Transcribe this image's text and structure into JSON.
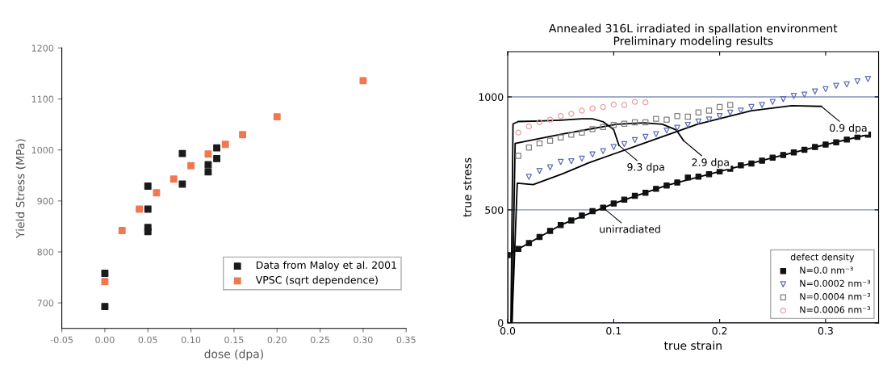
{
  "chart_data": [
    {
      "type": "scatter",
      "xlabel": "dose (dpa)",
      "ylabel": "Yield Stress (MPa)",
      "marker": "square",
      "xlim": [
        -0.05,
        0.35
      ],
      "xticks": [
        -0.05,
        {
          "value": 0,
          "label": "0.00"
        },
        0.05,
        {
          "value": 0.1,
          "label": "0.10"
        },
        0.15,
        {
          "value": 0.2,
          "label": "0.20"
        },
        0.25,
        {
          "value": 0.3,
          "label": "0.30"
        },
        0.35
      ],
      "ylim": [
        650,
        1200
      ],
      "yticks": [
        700,
        800,
        900,
        1000,
        1100,
        1200
      ],
      "grid": false,
      "legend": "bottom right",
      "series": [
        {
          "name": "Data from Maloy et al. 2001",
          "color": "#1a1a1a",
          "x": [
            0,
            0,
            0.05,
            0.05,
            0.05,
            0.05,
            0.09,
            0.09,
            0.12,
            0.12,
            0.13,
            0.13
          ],
          "values": [
            758,
            693,
            929,
            884,
            848,
            840,
            993,
            933,
            971,
            957,
            1004,
            983
          ]
        },
        {
          "name": "VPSC (sqrt dependence)",
          "color": "#f07850",
          "x": [
            0,
            0.02,
            0.04,
            0.06,
            0.08,
            0.1,
            0.12,
            0.14,
            0.16,
            0.2,
            0.3
          ],
          "values": [
            742,
            842,
            884,
            916,
            943,
            969,
            992,
            1011,
            1030,
            1065,
            1136
          ]
        }
      ]
    },
    {
      "type": "scatter",
      "title": "Annealed 316L irradiated in spallation environment\nPreliminary modeling results",
      "xlabel": "true strain",
      "ylabel": "true stress",
      "xlim": [
        0,
        0.35
      ],
      "xticks": [
        {
          "value": 0,
          "label": "0.0"
        },
        0.1,
        0.2,
        0.3
      ],
      "ylim": [
        0,
        1200
      ],
      "yticks": [
        0,
        500,
        1000
      ],
      "grid": "y",
      "legend": "bottom right",
      "legend_title": "defect density",
      "series": [
        {
          "type": "line",
          "color": "#000000",
          "x": [
            0,
            0,
            0.02,
            0.05,
            0.1,
            0.15,
            0.2,
            0.25,
            0.3,
            0.34
          ],
          "values": [
            0,
            300,
            353,
            433,
            528,
            608,
            670,
            731,
            789,
            833
          ]
        },
        {
          "type": "line",
          "color": "#000000",
          "x": [
            0.003,
            0.005,
            0.01,
            0.03,
            0.05,
            0.07,
            0.08,
            0.09,
            0.1,
            0.105
          ],
          "values": [
            0,
            880,
            891,
            893,
            897,
            903,
            903,
            890,
            855,
            785
          ]
        },
        {
          "type": "line",
          "color": "#000000",
          "x": [
            0.004,
            0.007,
            0.026,
            0.052,
            0.077,
            0.103,
            0.128,
            0.146,
            0.159,
            0.166
          ],
          "values": [
            0,
            794,
            812,
            836,
            857,
            879,
            885,
            879,
            854,
            806
          ]
        },
        {
          "type": "line",
          "color": "#000000",
          "x": [
            0.004,
            0.009,
            0.024,
            0.052,
            0.077,
            0.128,
            0.179,
            0.23,
            0.268,
            0.296
          ],
          "values": [
            0,
            618,
            612,
            660,
            709,
            794,
            879,
            939,
            961,
            958
          ]
        },
        {
          "name": "N=0.0 nm⁻³",
          "marker": "square",
          "color": "#111111",
          "x": [
            0,
            0.01,
            0.02,
            0.03,
            0.04,
            0.05,
            0.06,
            0.07,
            0.08,
            0.09,
            0.1,
            0.11,
            0.12,
            0.13,
            0.14,
            0.15,
            0.16,
            0.17,
            0.18,
            0.19,
            0.2,
            0.21,
            0.22,
            0.23,
            0.24,
            0.25,
            0.26,
            0.27,
            0.28,
            0.29,
            0.3,
            0.31,
            0.32,
            0.33,
            0.34
          ],
          "values": [
            300,
            327,
            353,
            380,
            407,
            433,
            453,
            475,
            494,
            510,
            528,
            545,
            562,
            576,
            593,
            608,
            621,
            643,
            647,
            658,
            670,
            682,
            697,
            705,
            718,
            731,
            743,
            754,
            766,
            778,
            789,
            799,
            811,
            823,
            833
          ]
        },
        {
          "name": "N=0.0002 nm⁻³",
          "marker": "triangle",
          "color": "#6070b0",
          "x": [
            0.02,
            0.03,
            0.04,
            0.05,
            0.06,
            0.07,
            0.08,
            0.09,
            0.1,
            0.11,
            0.12,
            0.13,
            0.14,
            0.15,
            0.16,
            0.17,
            0.18,
            0.19,
            0.2,
            0.21,
            0.22,
            0.23,
            0.24,
            0.25,
            0.26,
            0.27,
            0.28,
            0.29,
            0.3,
            0.31,
            0.32,
            0.33,
            0.34
          ],
          "values": [
            646,
            672,
            688,
            712,
            715,
            727,
            745,
            760,
            778,
            791,
            809,
            823,
            835,
            851,
            863,
            876,
            891,
            900,
            915,
            930,
            939,
            955,
            964,
            978,
            990,
            1004,
            1010,
            1024,
            1034,
            1049,
            1055,
            1069,
            1079
          ]
        },
        {
          "name": "N=0.0004 nm⁻³",
          "marker": "square",
          "color": "#808080",
          "x": [
            0.01,
            0.02,
            0.03,
            0.04,
            0.05,
            0.06,
            0.07,
            0.08,
            0.09,
            0.1,
            0.11,
            0.12,
            0.13,
            0.14,
            0.15,
            0.16,
            0.17,
            0.18,
            0.19,
            0.2,
            0.21
          ],
          "values": [
            739,
            776,
            794,
            806,
            820,
            833,
            842,
            857,
            867,
            876,
            881,
            887,
            887,
            903,
            899,
            915,
            912,
            931,
            939,
            955,
            964
          ]
        },
        {
          "name": "N=0.0006 nm⁻³",
          "marker": "circle",
          "color": "#e8a0a0",
          "x": [
            0.01,
            0.02,
            0.03,
            0.04,
            0.05,
            0.06,
            0.07,
            0.08,
            0.09,
            0.1,
            0.11,
            0.12,
            0.13
          ],
          "values": [
            842,
            869,
            888,
            899,
            915,
            925,
            939,
            949,
            955,
            966,
            964,
            978,
            976
          ]
        }
      ],
      "annotations": [
        {
          "text": "9.3 dpa",
          "x": 0.105,
          "y": 785
        },
        {
          "text": "2.9 dpa",
          "x": 0.166,
          "y": 806
        },
        {
          "text": "0.9 dpa",
          "x": 0.296,
          "y": 958
        },
        {
          "text": "unirradiated",
          "x": 0.09,
          "y": 510
        }
      ]
    }
  ]
}
